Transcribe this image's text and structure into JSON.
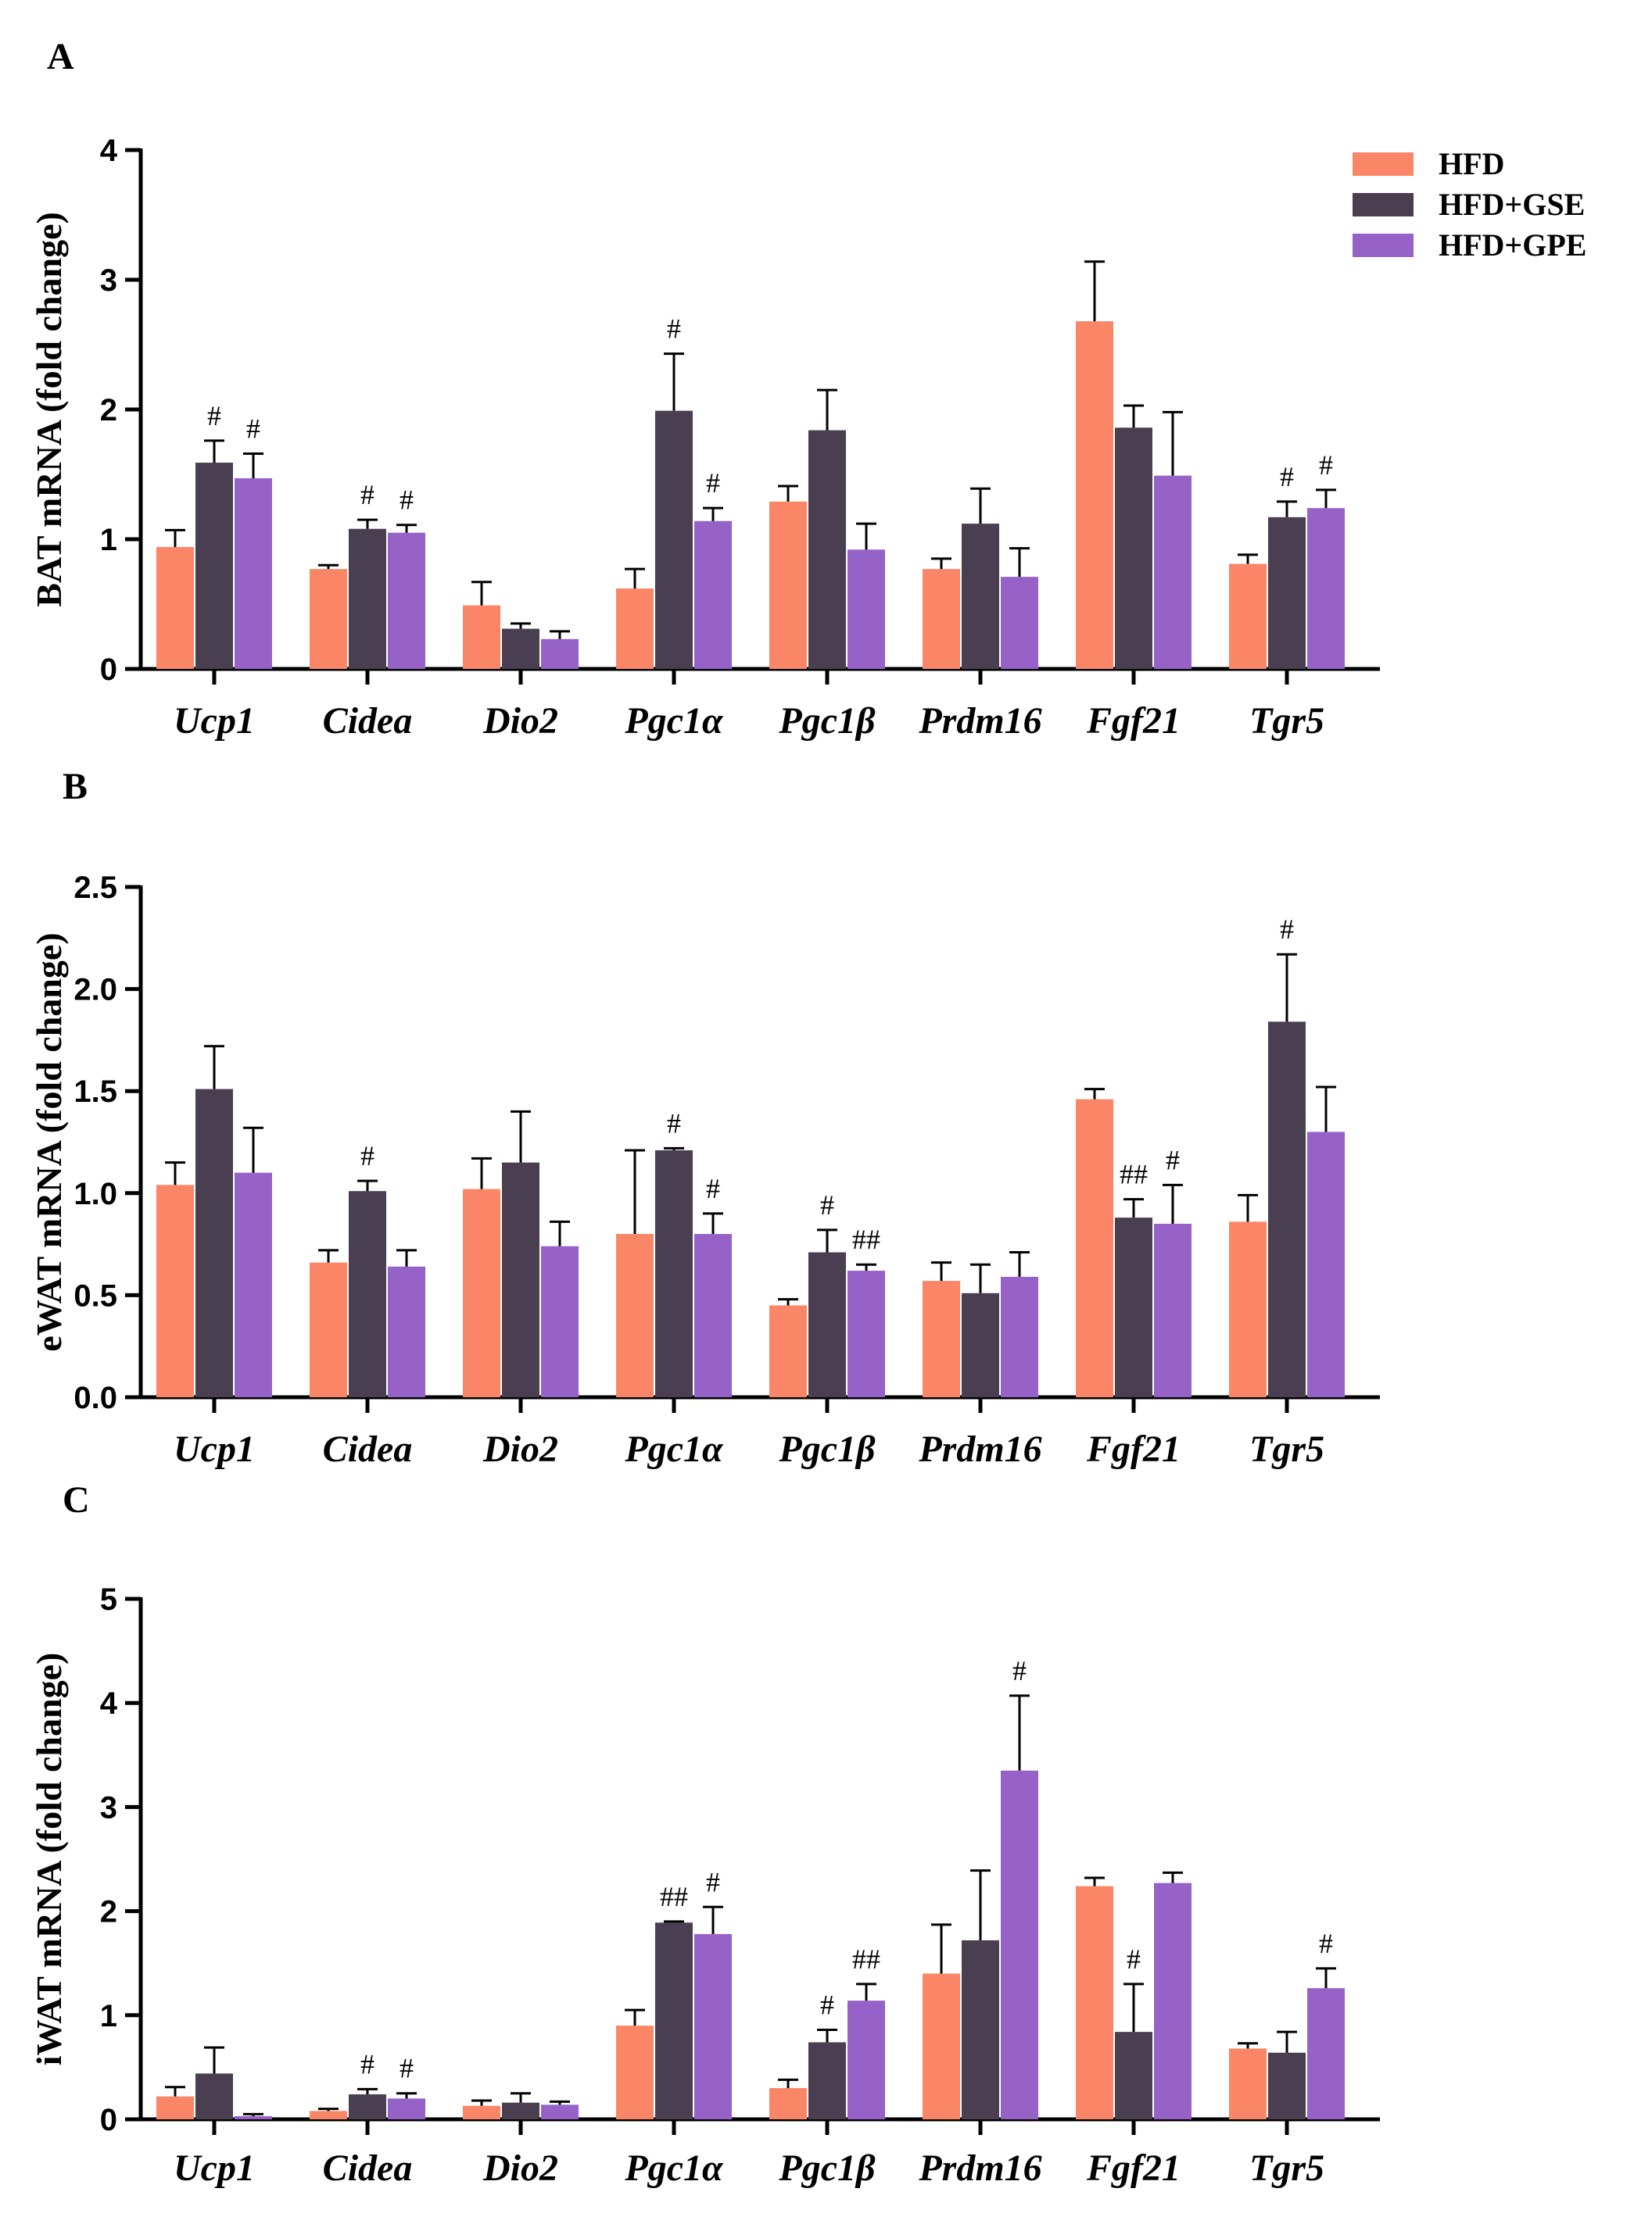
{
  "colors": {
    "HFD": "#FA8567",
    "HFD+GSE": "#4A3F51",
    "HFD+GPE": "#9662C8"
  },
  "legend": [
    "HFD",
    "HFD+GSE",
    "HFD+GPE"
  ],
  "chart_data": [
    {
      "panel": "A",
      "type": "bar",
      "ylabel": "BAT mRNA (fold change)",
      "ylim": [
        0,
        4
      ],
      "yticks": [
        "0",
        "1",
        "2",
        "3",
        "4"
      ],
      "categories": [
        "Ucp1",
        "Cidea",
        "Dio2",
        "Pgc1α",
        "Pgc1β",
        "Prdm16",
        "Fgf21",
        "Tgr5"
      ],
      "series": [
        {
          "name": "HFD",
          "values": [
            0.94,
            0.77,
            0.49,
            0.62,
            1.29,
            0.77,
            2.68,
            0.81
          ],
          "errors": [
            0.13,
            0.03,
            0.18,
            0.15,
            0.12,
            0.08,
            0.46,
            0.07
          ],
          "sig": [
            "",
            "",
            "",
            "",
            "",
            "",
            "",
            ""
          ]
        },
        {
          "name": "HFD+GSE",
          "values": [
            1.59,
            1.08,
            0.31,
            1.99,
            1.84,
            1.12,
            1.86,
            1.17
          ],
          "errors": [
            0.17,
            0.07,
            0.04,
            0.44,
            0.31,
            0.27,
            0.17,
            0.12
          ],
          "sig": [
            "#",
            "#",
            "",
            "#",
            "",
            "",
            "",
            "#"
          ]
        },
        {
          "name": "HFD+GPE",
          "values": [
            1.47,
            1.05,
            0.23,
            1.14,
            0.92,
            0.71,
            1.49,
            1.24
          ],
          "errors": [
            0.19,
            0.06,
            0.06,
            0.1,
            0.2,
            0.22,
            0.49,
            0.14
          ],
          "sig": [
            "#",
            "#",
            "",
            "#",
            "",
            "",
            "",
            "#"
          ]
        }
      ]
    },
    {
      "panel": "B",
      "type": "bar",
      "ylabel": "eWAT mRNA (fold change)",
      "ylim": [
        0,
        2.5
      ],
      "yticks": [
        "0.0",
        "0.5",
        "1.0",
        "1.5",
        "2.0",
        "2.5"
      ],
      "categories": [
        "Ucp1",
        "Cidea",
        "Dio2",
        "Pgc1α",
        "Pgc1β",
        "Prdm16",
        "Fgf21",
        "Tgr5"
      ],
      "series": [
        {
          "name": "HFD",
          "values": [
            1.04,
            0.66,
            1.02,
            0.8,
            0.45,
            0.57,
            1.46,
            0.86
          ],
          "errors": [
            0.11,
            0.06,
            0.15,
            0.41,
            0.03,
            0.09,
            0.05,
            0.13
          ],
          "sig": [
            "",
            "",
            "",
            "",
            "",
            "",
            "",
            ""
          ]
        },
        {
          "name": "HFD+GSE",
          "values": [
            1.51,
            1.01,
            1.15,
            1.21,
            0.71,
            0.51,
            0.88,
            1.84
          ],
          "errors": [
            0.21,
            0.05,
            0.25,
            0.01,
            0.11,
            0.14,
            0.09,
            0.33
          ],
          "sig": [
            "",
            "#",
            "",
            "#",
            "#",
            "",
            "##",
            "#"
          ]
        },
        {
          "name": "HFD+GPE",
          "values": [
            1.1,
            0.64,
            0.74,
            0.8,
            0.62,
            0.59,
            0.85,
            1.3
          ],
          "errors": [
            0.22,
            0.08,
            0.12,
            0.1,
            0.03,
            0.12,
            0.19,
            0.22
          ],
          "sig": [
            "",
            "",
            "",
            "#",
            "##",
            "",
            "#",
            ""
          ]
        }
      ]
    },
    {
      "panel": "C",
      "type": "bar",
      "ylabel": "iWAT mRNA (fold change)",
      "ylim": [
        0,
        5
      ],
      "yticks": [
        "0",
        "1",
        "2",
        "3",
        "4",
        "5"
      ],
      "categories": [
        "Ucp1",
        "Cidea",
        "Dio2",
        "Pgc1α",
        "Pgc1β",
        "Prdm16",
        "Fgf21",
        "Tgr5"
      ],
      "series": [
        {
          "name": "HFD",
          "values": [
            0.22,
            0.08,
            0.13,
            0.9,
            0.3,
            1.4,
            2.24,
            0.68
          ],
          "errors": [
            0.09,
            0.02,
            0.05,
            0.15,
            0.08,
            0.47,
            0.08,
            0.05
          ],
          "sig": [
            "",
            "",
            "",
            "",
            "",
            "",
            "",
            ""
          ]
        },
        {
          "name": "HFD+GSE",
          "values": [
            0.44,
            0.24,
            0.16,
            1.89,
            0.74,
            1.72,
            0.84,
            0.64
          ],
          "errors": [
            0.25,
            0.05,
            0.09,
            0.01,
            0.12,
            0.67,
            0.46,
            0.2
          ],
          "sig": [
            "",
            "#",
            "",
            "##",
            "#",
            "",
            "#",
            ""
          ]
        },
        {
          "name": "HFD+GPE",
          "values": [
            0.03,
            0.2,
            0.14,
            1.78,
            1.14,
            3.35,
            2.27,
            1.26
          ],
          "errors": [
            0.02,
            0.05,
            0.03,
            0.26,
            0.16,
            0.72,
            0.1,
            0.19
          ],
          "sig": [
            "",
            "#",
            "",
            "#",
            "##",
            "#",
            "",
            "#"
          ]
        }
      ]
    }
  ]
}
